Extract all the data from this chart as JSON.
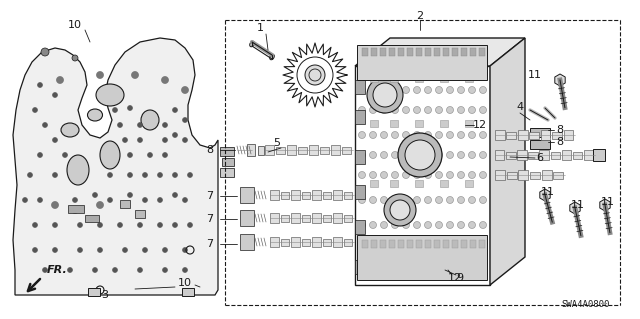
{
  "bg_color": "#ffffff",
  "line_color": "#1a1a1a",
  "diagram_id": "SWA4A0800",
  "fig_width": 6.4,
  "fig_height": 3.19,
  "dpi": 100
}
